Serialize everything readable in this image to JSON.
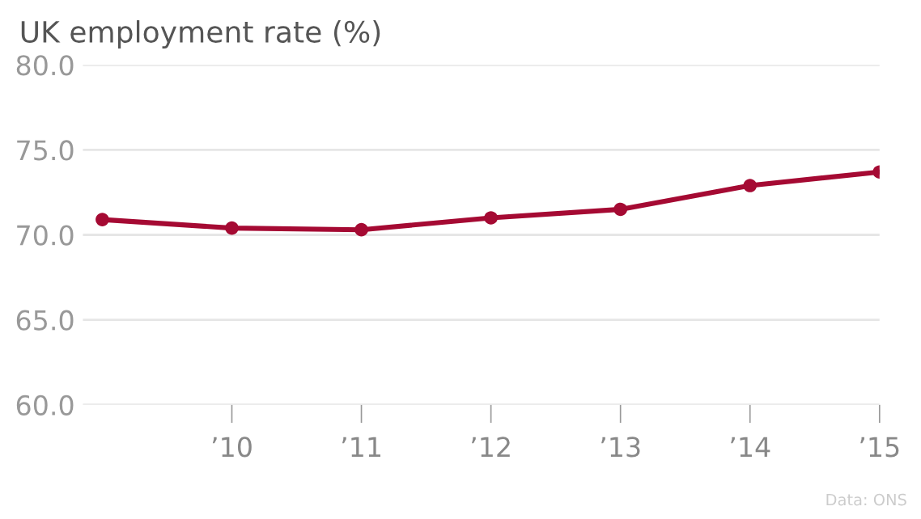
{
  "chart_data": {
    "type": "line",
    "title": "UK employment rate (%)",
    "x": [
      2009,
      2010,
      2011,
      2012,
      2013,
      2014,
      2015
    ],
    "series": [
      {
        "color": "#a50a33",
        "values": [
          70.9,
          70.4,
          70.3,
          71.0,
          71.5,
          72.9,
          73.7
        ]
      }
    ],
    "xlim": [
      2008.85,
      2015
    ],
    "xticks": [
      {
        "value": 2010,
        "label": "’10"
      },
      {
        "value": 2011,
        "label": "’11"
      },
      {
        "value": 2012,
        "label": "’12"
      },
      {
        "value": 2013,
        "label": "’13"
      },
      {
        "value": 2014,
        "label": "’14"
      },
      {
        "value": 2015,
        "label": "’15"
      }
    ],
    "ylim": [
      60,
      80
    ],
    "yticks": [
      {
        "value": 60,
        "label": "60.0"
      },
      {
        "value": 65,
        "label": "65.0"
      },
      {
        "value": 70,
        "label": "70.0"
      },
      {
        "value": 75,
        "label": "75.0"
      },
      {
        "value": 80,
        "label": "80.0"
      }
    ],
    "grid": "y",
    "marker": "circle",
    "line_style": "solid",
    "annotations": [
      "Data: ONS"
    ]
  }
}
